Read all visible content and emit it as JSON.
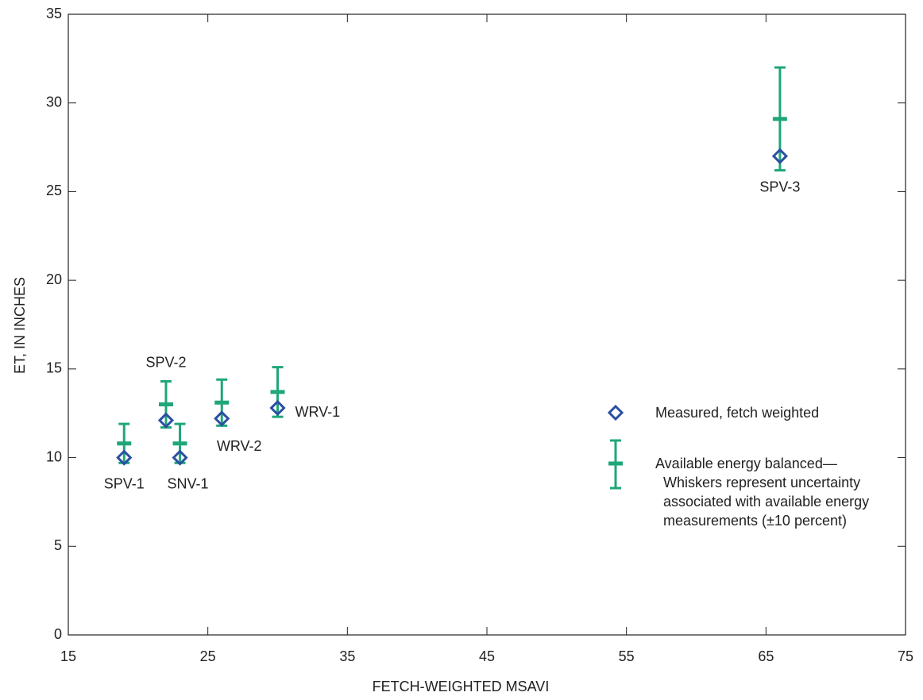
{
  "chart_data": {
    "type": "scatter",
    "xlabel": "FETCH-WEIGHTED MSAVI",
    "ylabel": "ET, IN INCHES",
    "xlim": [
      15,
      75
    ],
    "xticks": [
      15,
      25,
      35,
      45,
      55,
      65,
      75
    ],
    "ylim": [
      0,
      35
    ],
    "yticks": [
      0,
      5,
      10,
      15,
      20,
      25,
      30,
      35
    ],
    "point_labels": [
      "SPV-1",
      "SPV-2",
      "SNV-1",
      "WRV-2",
      "WRV-1",
      "SPV-3"
    ],
    "series": [
      {
        "name": "Measured, fetch weighted",
        "color": "#2b4fa2",
        "marker": "diamond",
        "x": [
          19,
          22,
          23,
          26,
          30,
          66
        ],
        "values": [
          10,
          12.1,
          10,
          12.2,
          12.8,
          27
        ]
      },
      {
        "name": "Available energy balanced—Whiskers represent uncertainty associated with available energy measurements (±10 percent)",
        "color": "#1fa67a",
        "marker": "errorbar",
        "x": [
          19,
          22,
          23,
          26,
          30,
          66
        ],
        "values": [
          10.8,
          13,
          10.8,
          13.1,
          13.7,
          29.1
        ],
        "errors": [
          1.1,
          1.3,
          1.1,
          1.3,
          1.4,
          2.9
        ]
      }
    ]
  }
}
